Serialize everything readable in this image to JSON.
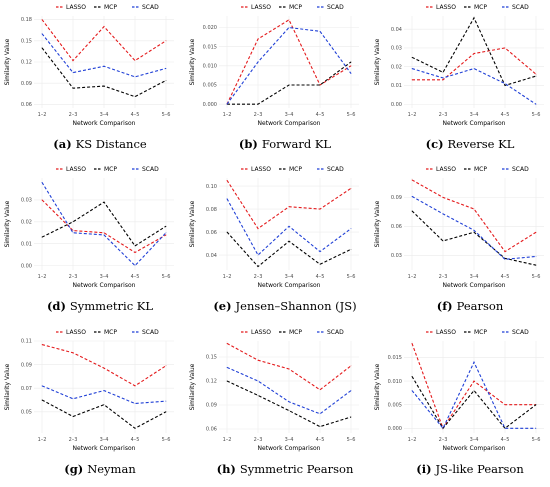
{
  "legend": [
    "LASSO",
    "MCP",
    "SCAD"
  ],
  "colors": {
    "LASSO": "#e41a1c",
    "MCP": "#000000",
    "SCAD": "#1f3fd6"
  },
  "chart_data": [
    {
      "type": "line",
      "letter": "(a)",
      "caption": "KS Distance",
      "xlabel": "Network Comparison",
      "ylabel": "Similarity Value",
      "categories": [
        "1–2",
        "2–3",
        "3–4",
        "4–5",
        "5–6"
      ],
      "ylim": [
        0.055,
        0.185
      ],
      "yticks": [
        "0.06",
        "0.09",
        "0.12",
        "0.15",
        "0.18"
      ],
      "series": [
        {
          "name": "LASSO",
          "values": [
            0.18,
            0.122,
            0.17,
            0.122,
            0.15
          ]
        },
        {
          "name": "MCP",
          "values": [
            0.14,
            0.083,
            0.086,
            0.071,
            0.094
          ]
        },
        {
          "name": "SCAD",
          "values": [
            0.16,
            0.105,
            0.114,
            0.099,
            0.111
          ]
        }
      ]
    },
    {
      "type": "line",
      "letter": "(b)",
      "caption": "Forward KL",
      "xlabel": "Network Comparison",
      "ylabel": "Similarity Value",
      "categories": [
        "1–2",
        "2–3",
        "3–4",
        "4–5",
        "5–6"
      ],
      "ylim": [
        -0.001,
        0.023
      ],
      "yticks": [
        "0.000",
        "0.005",
        "0.010",
        "0.015",
        "0.020"
      ],
      "series": [
        {
          "name": "LASSO",
          "values": [
            0.0,
            0.017,
            0.022,
            0.005,
            0.01
          ]
        },
        {
          "name": "MCP",
          "values": [
            0.0,
            0.0,
            0.005,
            0.005,
            0.011
          ]
        },
        {
          "name": "SCAD",
          "values": [
            0.0,
            0.011,
            0.02,
            0.019,
            0.008
          ]
        }
      ]
    },
    {
      "type": "line",
      "letter": "(c)",
      "caption": "Reverse KL",
      "xlabel": "Network Comparison",
      "ylabel": "Similarity Value",
      "categories": [
        "1–2",
        "2–3",
        "3–4",
        "4–5",
        "5–6"
      ],
      "ylim": [
        -0.002,
        0.047
      ],
      "yticks": [
        "0.00",
        "0.01",
        "0.02",
        "0.03",
        "0.04"
      ],
      "series": [
        {
          "name": "LASSO",
          "values": [
            0.013,
            0.013,
            0.027,
            0.03,
            0.016
          ]
        },
        {
          "name": "MCP",
          "values": [
            0.025,
            0.017,
            0.046,
            0.01,
            0.015
          ]
        },
        {
          "name": "SCAD",
          "values": [
            0.019,
            0.014,
            0.019,
            0.011,
            0.0
          ]
        }
      ]
    },
    {
      "type": "line",
      "letter": "(d)",
      "caption": "Symmetric KL",
      "xlabel": "Network Comparison",
      "ylabel": "Similarity Value",
      "categories": [
        "1–2",
        "2–3",
        "3–4",
        "4–5",
        "5–6"
      ],
      "ylim": [
        -0.002,
        0.04
      ],
      "yticks": [
        "0.00",
        "0.01",
        "0.02",
        "0.03"
      ],
      "series": [
        {
          "name": "LASSO",
          "values": [
            0.03,
            0.016,
            0.015,
            0.006,
            0.014
          ]
        },
        {
          "name": "MCP",
          "values": [
            0.013,
            0.02,
            0.029,
            0.009,
            0.018
          ]
        },
        {
          "name": "SCAD",
          "values": [
            0.038,
            0.015,
            0.014,
            0.0,
            0.015
          ]
        }
      ]
    },
    {
      "type": "line",
      "letter": "(e)",
      "caption": "Jensen–Shannon (JS)",
      "xlabel": "Network Comparison",
      "ylabel": "Similarity Value",
      "categories": [
        "1–2",
        "2–3",
        "3–4",
        "4–5",
        "5–6"
      ],
      "ylim": [
        0.027,
        0.107
      ],
      "yticks": [
        "0.04",
        "0.06",
        "0.08",
        "0.10"
      ],
      "series": [
        {
          "name": "LASSO",
          "values": [
            0.105,
            0.063,
            0.082,
            0.08,
            0.098
          ]
        },
        {
          "name": "MCP",
          "values": [
            0.06,
            0.03,
            0.052,
            0.032,
            0.045
          ]
        },
        {
          "name": "SCAD",
          "values": [
            0.089,
            0.04,
            0.065,
            0.043,
            0.063
          ]
        }
      ]
    },
    {
      "type": "line",
      "letter": "(f)",
      "caption": "Pearson",
      "xlabel": "Network Comparison",
      "ylabel": "Similarity Value",
      "categories": [
        "1–2",
        "2–3",
        "3–4",
        "4–5",
        "5–6"
      ],
      "ylim": [
        0.015,
        0.11
      ],
      "yticks": [
        "0.03",
        "0.06",
        "0.09"
      ],
      "series": [
        {
          "name": "LASSO",
          "values": [
            0.108,
            0.09,
            0.078,
            0.034,
            0.054
          ]
        },
        {
          "name": "MCP",
          "values": [
            0.076,
            0.045,
            0.054,
            0.027,
            0.02
          ]
        },
        {
          "name": "SCAD",
          "values": [
            0.091,
            0.073,
            0.056,
            0.026,
            0.029
          ]
        }
      ]
    },
    {
      "type": "line",
      "letter": "(g)",
      "caption": "Neyman",
      "xlabel": "Network Comparison",
      "ylabel": "Similarity Value",
      "categories": [
        "1–2",
        "2–3",
        "3–4",
        "4–5",
        "5–6"
      ],
      "ylim": [
        0.032,
        0.11
      ],
      "yticks": [
        "0.05",
        "0.07",
        "0.09",
        "0.11"
      ],
      "series": [
        {
          "name": "LASSO",
          "values": [
            0.107,
            0.1,
            0.087,
            0.072,
            0.089
          ]
        },
        {
          "name": "MCP",
          "values": [
            0.06,
            0.046,
            0.056,
            0.036,
            0.05
          ]
        },
        {
          "name": "SCAD",
          "values": [
            0.072,
            0.061,
            0.068,
            0.057,
            0.059
          ]
        }
      ]
    },
    {
      "type": "line",
      "letter": "(h)",
      "caption": "Symmetric Pearson",
      "xlabel": "Network Comparison",
      "ylabel": "Similarity Value",
      "categories": [
        "1–2",
        "2–3",
        "3–4",
        "4–5",
        "5–6"
      ],
      "ylim": [
        0.055,
        0.17
      ],
      "yticks": [
        "0.06",
        "0.09",
        "0.12",
        "0.15"
      ],
      "series": [
        {
          "name": "LASSO",
          "values": [
            0.167,
            0.146,
            0.135,
            0.109,
            0.139
          ]
        },
        {
          "name": "MCP",
          "values": [
            0.12,
            0.102,
            0.083,
            0.063,
            0.075
          ]
        },
        {
          "name": "SCAD",
          "values": [
            0.137,
            0.12,
            0.094,
            0.079,
            0.108
          ]
        }
      ]
    },
    {
      "type": "line",
      "letter": "(i)",
      "caption": "JS-like Pearson",
      "xlabel": "Network Comparison",
      "ylabel": "Similarity Value",
      "categories": [
        "1–2",
        "2–3",
        "3–4",
        "4–5",
        "5–6"
      ],
      "ylim": [
        -0.001,
        0.0185
      ],
      "yticks": [
        "0.000",
        "0.005",
        "0.010",
        "0.015"
      ],
      "series": [
        {
          "name": "LASSO",
          "values": [
            0.018,
            0.0,
            0.01,
            0.005,
            0.005
          ]
        },
        {
          "name": "MCP",
          "values": [
            0.011,
            0.0,
            0.008,
            0.0,
            0.005
          ]
        },
        {
          "name": "SCAD",
          "values": [
            0.008,
            0.0,
            0.014,
            0.0,
            0.0
          ]
        }
      ]
    }
  ]
}
